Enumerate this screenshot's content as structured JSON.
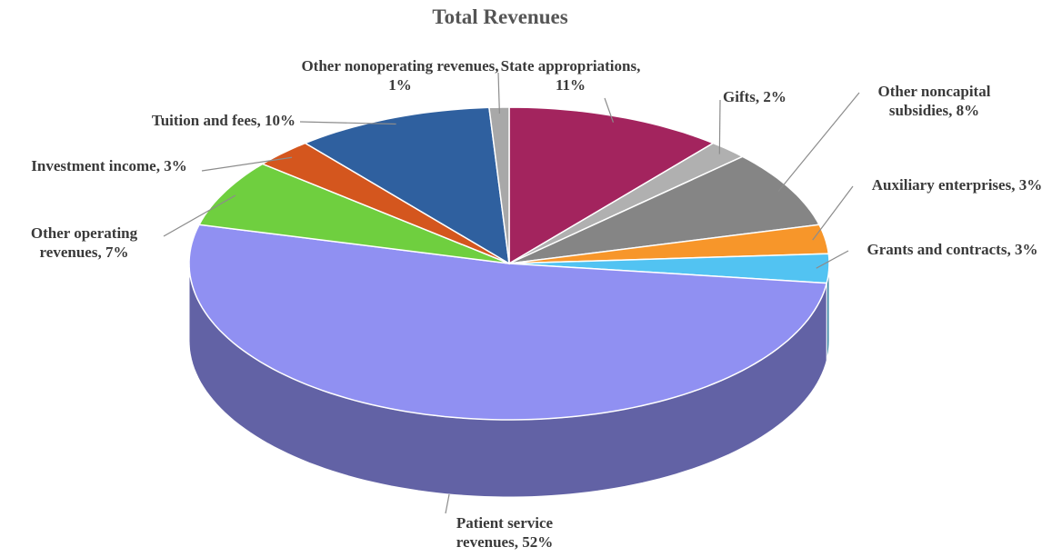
{
  "chart_data": {
    "type": "pie",
    "title": "Total Revenues",
    "values": [
      11,
      2,
      8,
      3,
      3,
      52,
      7,
      3,
      10,
      1
    ],
    "value_labels": [
      "State appropriations, 11%",
      "Gifts, 2%",
      "Other noncapital subsidies, 8%",
      "Auxiliary enterprises, 3%",
      "Grants and contracts, 3%",
      "Patient service revenues, 52%",
      "Other operating revenues, 7%",
      "Investment income, 3%",
      "Tuition and fees, 10%",
      "Other nonoperating revenues, 1%"
    ],
    "colors": [
      "#a3245e",
      "#b0b0b0",
      "#858585",
      "#f7962a",
      "#52c3f2",
      "#9090f2",
      "#6fcf3f",
      "#d4561e",
      "#2f609f",
      "#a8a8a8"
    ]
  }
}
